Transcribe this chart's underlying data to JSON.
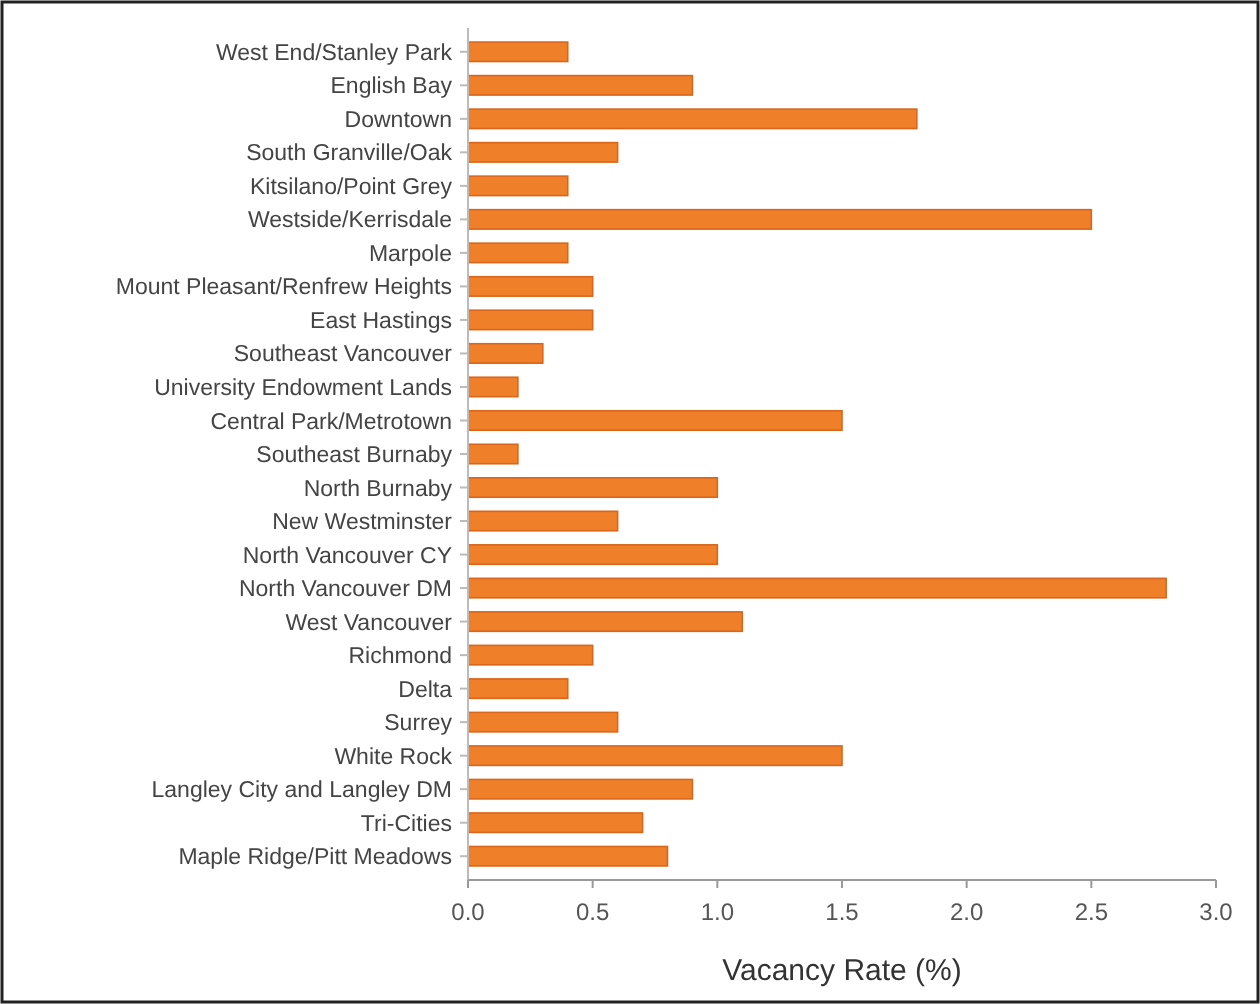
{
  "chart_data": {
    "type": "bar",
    "orientation": "horizontal",
    "xlabel": "Vacancy Rate (%)",
    "categories": [
      "West End/Stanley Park",
      "English Bay",
      "Downtown",
      "South Granville/Oak",
      "Kitsilano/Point Grey",
      "Westside/Kerrisdale",
      "Marpole",
      "Mount Pleasant/Renfrew Heights",
      "East Hastings",
      "Southeast Vancouver",
      "University Endowment Lands",
      "Central Park/Metrotown",
      "Southeast Burnaby",
      "North Burnaby",
      "New Westminster",
      "North Vancouver CY",
      "North Vancouver DM",
      "West Vancouver",
      "Richmond",
      "Delta",
      "Surrey",
      "White Rock",
      "Langley City and Langley DM",
      "Tri-Cities",
      "Maple Ridge/Pitt Meadows"
    ],
    "values": [
      0.4,
      0.9,
      1.8,
      0.6,
      0.4,
      2.5,
      0.4,
      0.5,
      0.5,
      0.3,
      0.2,
      1.5,
      0.2,
      1.0,
      0.6,
      1.0,
      2.8,
      1.1,
      0.5,
      0.4,
      0.6,
      1.5,
      0.9,
      0.7,
      0.8
    ],
    "color": "#f07f2a",
    "xlim": [
      0,
      3
    ],
    "xticks": [
      {
        "value": 0,
        "label": "0.0"
      },
      {
        "value": 0.5,
        "label": "0.5"
      },
      {
        "value": 1,
        "label": "1.0"
      },
      {
        "value": 1.5,
        "label": "1.5"
      },
      {
        "value": 2,
        "label": "2.0"
      },
      {
        "value": 2.5,
        "label": "2.5"
      },
      {
        "value": 3,
        "label": "3.0"
      }
    ],
    "grid": false
  }
}
